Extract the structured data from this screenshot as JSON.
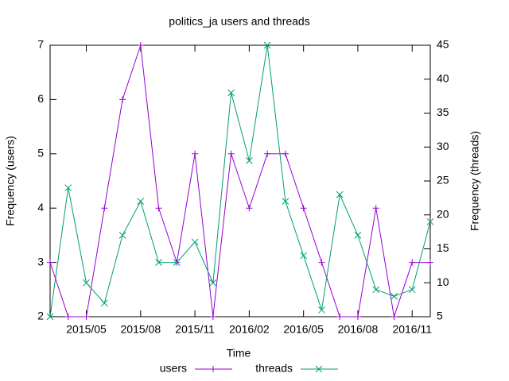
{
  "chart_data": {
    "type": "line",
    "title": "politics_ja users and threads",
    "xlabel": "Time",
    "ylabel": "Frequency (users)",
    "y2label": "Frequency (threads)",
    "x": [
      "2015/03",
      "2015/04",
      "2015/05",
      "2015/06",
      "2015/07",
      "2015/08",
      "2015/09",
      "2015/10",
      "2015/11",
      "2015/12",
      "2016/01",
      "2016/02",
      "2016/03",
      "2016/04",
      "2016/05",
      "2016/06",
      "2016/07",
      "2016/08",
      "2016/09",
      "2016/10",
      "2016/11",
      "2016/12"
    ],
    "xlim": [
      "2015/03",
      "2016/12"
    ],
    "xticks": [
      "2015/05",
      "2015/08",
      "2015/11",
      "2016/02",
      "2016/05",
      "2016/08",
      "2016/11"
    ],
    "ylim": [
      2,
      7
    ],
    "yticks": [
      2,
      3,
      4,
      5,
      6,
      7
    ],
    "y2lim": [
      5,
      45
    ],
    "y2ticks": [
      5,
      10,
      15,
      20,
      25,
      30,
      35,
      40,
      45
    ],
    "legend": "bottom",
    "series": [
      {
        "name": "users",
        "color": "#9400d3",
        "marker": "plus",
        "values": [
          3,
          2,
          2,
          4,
          6,
          7,
          4,
          3,
          5,
          2,
          5,
          4,
          5,
          5,
          4,
          3,
          2,
          2,
          4,
          2,
          3,
          3
        ]
      },
      {
        "name": "threads",
        "color": "#009e73",
        "marker": "cross",
        "axis": "y2",
        "values": [
          5,
          24,
          10,
          7,
          17,
          22,
          13,
          13,
          16,
          10,
          38,
          28,
          45,
          22,
          14,
          6,
          23,
          17,
          9,
          8,
          9,
          19
        ]
      }
    ]
  }
}
